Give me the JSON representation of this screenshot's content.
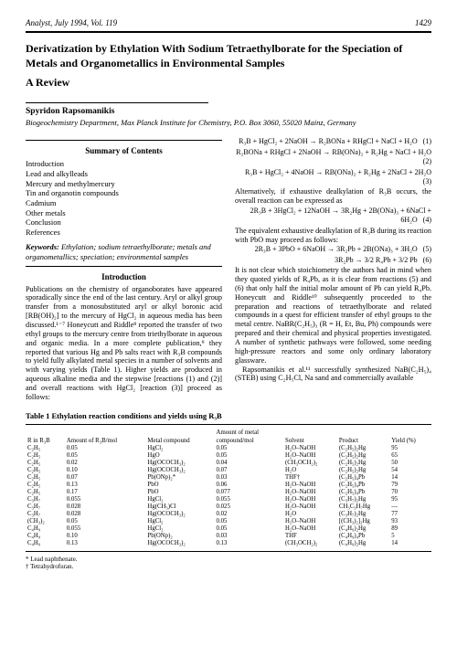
{
  "header": {
    "journal": "Analyst, July 1994, Vol. 119",
    "page": "1429"
  },
  "title": "Derivatization by Ethylation With Sodium Tetraethylborate for the Speciation of Metals and Organometallics in Environmental Samples",
  "subtitle": "A Review",
  "author": "Spyridon Rapsomanikis",
  "affiliation": "Biogeochemistry Department, Max Planck Institute for Chemistry, P.O. Box 3060, 55020 Mainz, Germany",
  "toc_heading": "Summary of Contents",
  "toc": [
    "Introduction",
    "Lead and alkylleads",
    "Mercury and methylmercury",
    "Tin and organotin compounds",
    "Cadmium",
    "Other metals",
    "Conclusion",
    "References"
  ],
  "keywords_label": "Keywords:",
  "keywords": "Ethylation; sodium tetraethylborate; metals and organometallics; speciation; environmental samples",
  "intro_heading": "Introduction",
  "intro_text": "Publications on the chemistry of organoborates have appeared sporadically since the end of the last century. Aryl or alkyl group transfer from a monosubstituted aryl or alkyl boronic acid [RB(OH)₂] to the mercury of HgCl₂ in aqueous media has been discussed.¹⁻⁷ Honeycutt and Riddle⁸ reported the transfer of two ethyl groups to the mercury centre from triethylborate in aqueous and organic media. In a more complete publication,⁹ they reported that various Hg and Pb salts react with R₃B compounds to yield fully alkylated metal species in a number of solvents and with varying yields (Table 1). Higher yields are produced in aqueous alkaline media and the stepwise [reactions (1) and (2)] and overall reactions with HgCl₂ [reaction (3)] proceed as follows:",
  "equations": [
    {
      "text": "R₃B + HgCl₂ + 2NaOH → R₂BONa + RHgCl + NaCl + H₂O",
      "num": "(1)"
    },
    {
      "text": "R₂BONa + RHgCl + 2NaOH → RB(ONa)₂ + R₂Hg + NaCl + H₂O",
      "num": "(2)"
    },
    {
      "text": "R₃B + HgCl₂ + 4NaOH → RB(ONa)₂ + R₂Hg + 2NaCl + 2H₂O",
      "num": "(3)"
    }
  ],
  "para_alt": "Alternatively, if exhaustive dealkylation of R₃B occurs, the overall reaction can be expressed as",
  "eq4": {
    "text": "2R₃B + 3HgCl₂ + 12NaOH → 3R₂Hg + 2B(ONa)₃ + 6NaCl + 6H₂O",
    "num": "(4)"
  },
  "para_equiv": "The equivalent exhaustive dealkylation of R₃B during its reaction with PbO may proceed as follows:",
  "eq5": {
    "text": "2R₃B + 3PbO + 6NaOH → 3R₂Pb + 2B(ONa)₃ + 3H₂O",
    "num": "(5)"
  },
  "eq6": {
    "text": "3R₂Pb → 3/2 R₄Pb + 3/2 Pb",
    "num": "(6)"
  },
  "para_after": "It is not clear which stoichiometry the authors had in mind when they quoted yields of R₄Pb, as it is clear from reactions (5) and (6) that only half the initial molar amount of Pb can yield R₄Pb. Honeycutt and Riddle¹⁰ subsequently proceeded to the preparation and reactions of tetraethylborate and related compounds in a quest for efficient transfer of ethyl groups to the metal centre. NaBR(C₂H₅)₃ (R = H, Et, Bu, Ph) compounds were prepared and their chemical and physical properties investigated. A number of synthetic pathways were followed, some needing high-pressure reactors and some only ordinary laboratory glassware.",
  "para_raps": "Rapsomanikis et al.¹¹ successfully synthesized NaB(C₂H₅)₄ (STEB) using C₂H₅Cl, Na sand and commercially available",
  "table": {
    "caption": "Table 1 Ethylation reaction conditions and yields using R₃B",
    "columns": [
      "R in R₃B",
      "Amount of R₃B/mol",
      "Metal compound",
      "Amount of metal compound/mol",
      "Solvent",
      "Product",
      "Yield (%)"
    ],
    "rows": [
      [
        "C₂H₅",
        "0.05",
        "HgCl₂",
        "0.05",
        "H₂O–NaOH",
        "(C₂H₅)₂Hg",
        "95"
      ],
      [
        "C₂H₅",
        "0.05",
        "HgO",
        "0.05",
        "H₂O–NaOH",
        "(C₂H₅)₂Hg",
        "65"
      ],
      [
        "C₂H₅",
        "0.02",
        "Hg(OCOCH₃)₂",
        "0.04",
        "(CH₃OCH₂)₂",
        "(C₂H₅)₂Hg",
        "50"
      ],
      [
        "C₂H₅",
        "0.10",
        "Hg(OCOCH₃)₂",
        "0.07",
        "H₂O",
        "(C₂H₅)₂Hg",
        "54"
      ],
      [
        "C₂H₅",
        "0.07",
        "Pb(ONp)₂*",
        "0.03",
        "THF†",
        "(C₂H₅)₄Pb",
        "14"
      ],
      [
        "C₂H₅",
        "0.13",
        "PbO",
        "0.06",
        "H₂O–NaOH",
        "(C₂H₅)₄Pb",
        "79"
      ],
      [
        "C₂H₅",
        "0.17",
        "PbO",
        "0.077",
        "H₂O–NaOH",
        "(C₂H₅)₄Pb",
        "70"
      ],
      [
        "C₃H₇",
        "0.055",
        "HgCl₂",
        "0.055",
        "H₂O–NaOH",
        "(C₃H₇)₂Hg",
        "95"
      ],
      [
        "C₃H₇",
        "0.028",
        "Hg(CH₃)Cl",
        "0.025",
        "H₂O–NaOH",
        "CH₃C₃H₇Hg",
        "—"
      ],
      [
        "C₃H₇",
        "0.028",
        "Hg(OCOCH₃)₂",
        "0.02",
        "H₂O",
        "(C₃H₇)₂Hg",
        "77"
      ],
      [
        "(CH₃)₂",
        "0.05",
        "HgCl₂",
        "0.05",
        "H₂O–NaOH",
        "[(CH₃)₂]₂Hg",
        "93"
      ],
      [
        "C₄H₉",
        "0.055",
        "HgCl₂",
        "0.05",
        "H₂O–NaOH",
        "(C₄H₉)₂Hg",
        "89"
      ],
      [
        "C₄H₉",
        "0.10",
        "Pb(ONp)₂",
        "0.03",
        "THF",
        "(C₄H₉)₄Pb",
        "5"
      ],
      [
        "C₄H₉",
        "0.13",
        "Hg(OCOCH₃)₂",
        "0.13",
        "(CH₃OCH₂)₂",
        "(C₄H₉)₂Hg",
        "14"
      ]
    ],
    "footnotes": [
      "* Lead naphthenate.",
      "† Tetrahydrofuran."
    ]
  }
}
